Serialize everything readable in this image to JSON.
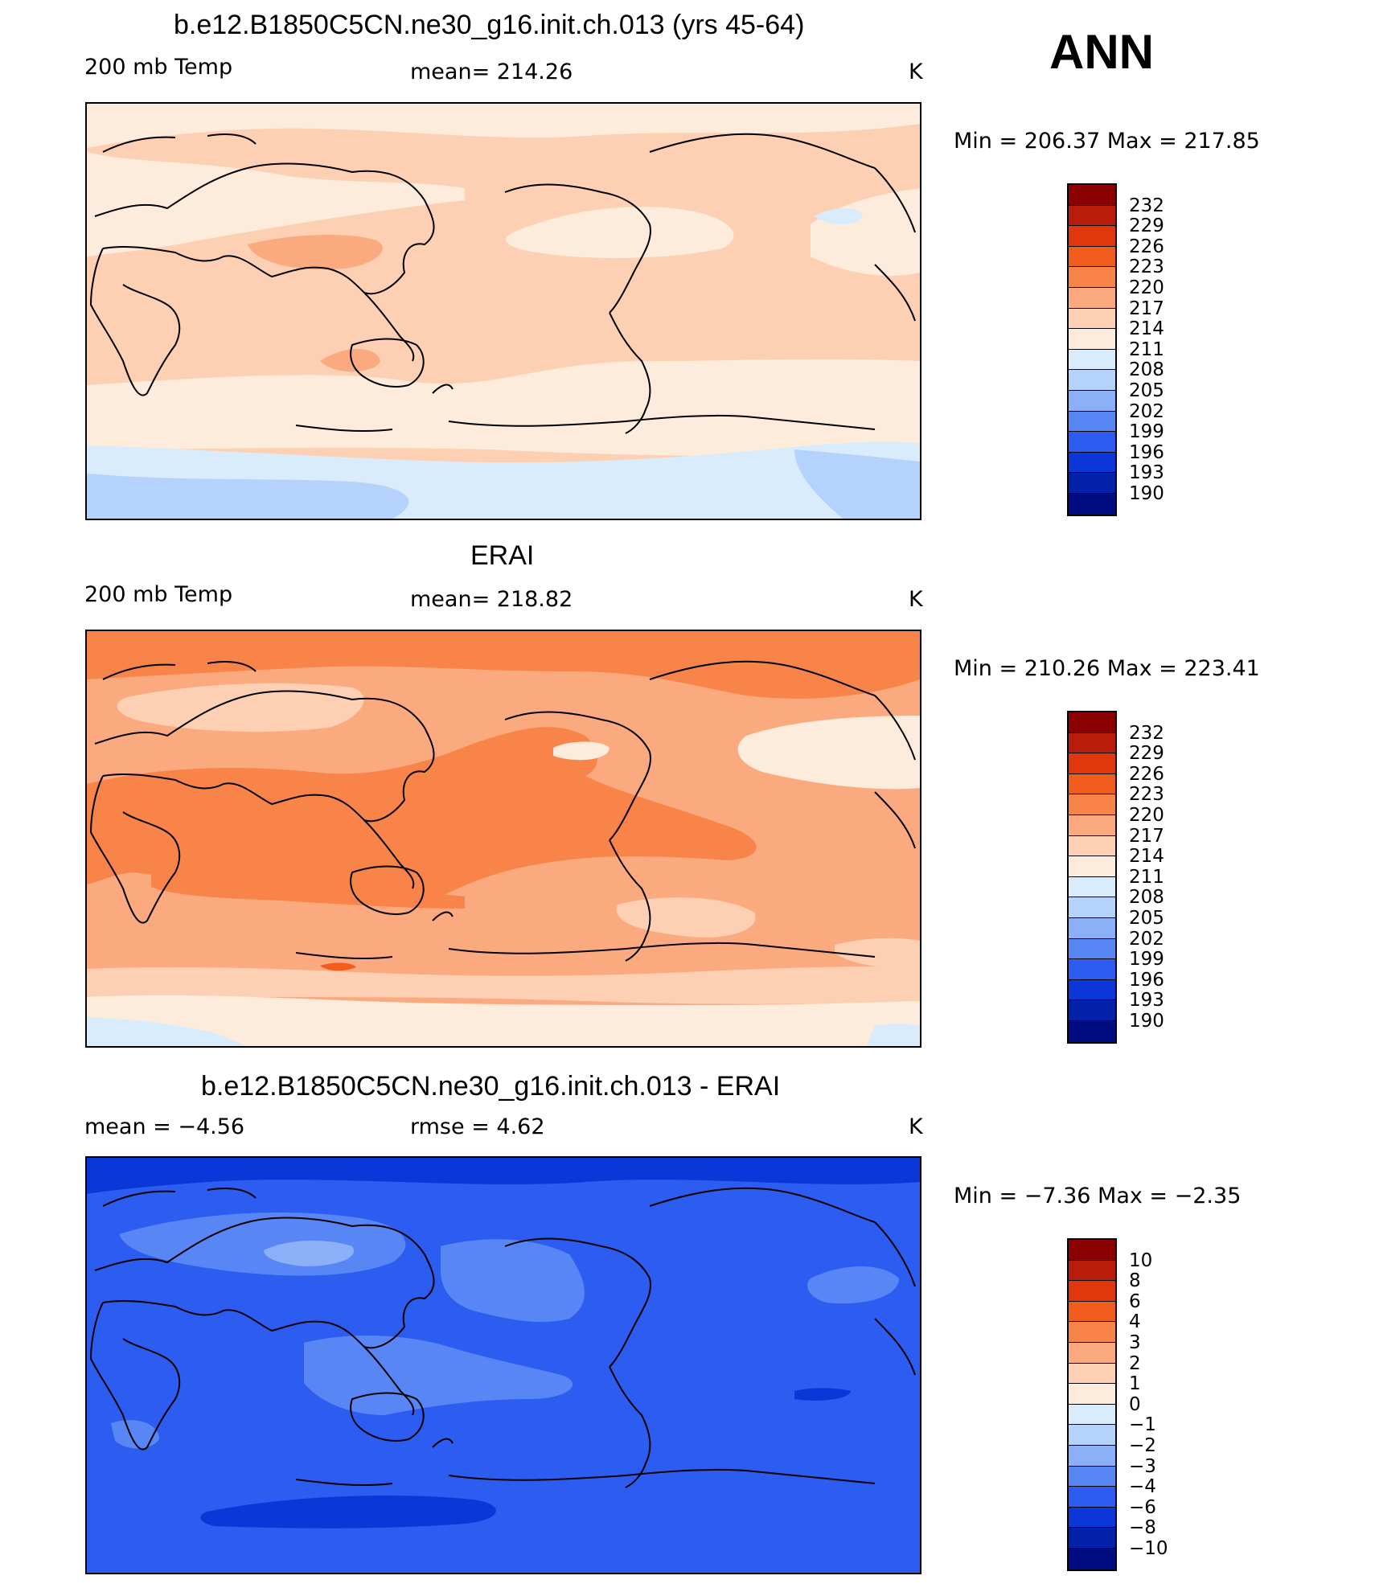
{
  "season": "ANN",
  "panels": [
    {
      "title": "b.e12.B1850C5CN.ne30_g16.init.ch.013 (yrs 45-64)",
      "left_label": "200 mb Temp",
      "center_label": "mean=  214.26",
      "units": "K",
      "minmax": "Min  =  206.37  Max  =  217.85",
      "colorbar_ticks": [
        "232",
        "229",
        "226",
        "223",
        "220",
        "217",
        "214",
        "211",
        "208",
        "205",
        "202",
        "199",
        "196",
        "193",
        "190"
      ]
    },
    {
      "title": "ERAI",
      "left_label": "200 mb Temp",
      "center_label": "mean=  218.82",
      "units": "K",
      "minmax": "Min  =  210.26  Max  =  223.41",
      "colorbar_ticks": [
        "232",
        "229",
        "226",
        "223",
        "220",
        "217",
        "214",
        "211",
        "208",
        "205",
        "202",
        "199",
        "196",
        "193",
        "190"
      ]
    },
    {
      "title": "b.e12.B1850C5CN.ne30_g16.init.ch.013 - ERAI",
      "left_label": "mean  =    −4.56",
      "center_label": "rmse  =     4.62",
      "units": "K",
      "minmax": "Min  =    −7.36  Max  =    −2.35",
      "colorbar_ticks": [
        "10",
        "8",
        "6",
        "4",
        "3",
        "2",
        "1",
        "0",
        "−1",
        "−2",
        "−3",
        "−4",
        "−6",
        "−8",
        "−10"
      ]
    }
  ],
  "colors": {
    "colorbar": [
      "#8b0000",
      "#b81d0c",
      "#e0370c",
      "#f25c1e",
      "#f9844a",
      "#fbaa80",
      "#fdd0b4",
      "#fdebdb",
      "#d9ecfc",
      "#b4d2fb",
      "#8cb0f8",
      "#5886f5",
      "#2d5df0",
      "#0b37d8",
      "#0021a8",
      "#000d80"
    ],
    "land_outline": "#000000"
  }
}
